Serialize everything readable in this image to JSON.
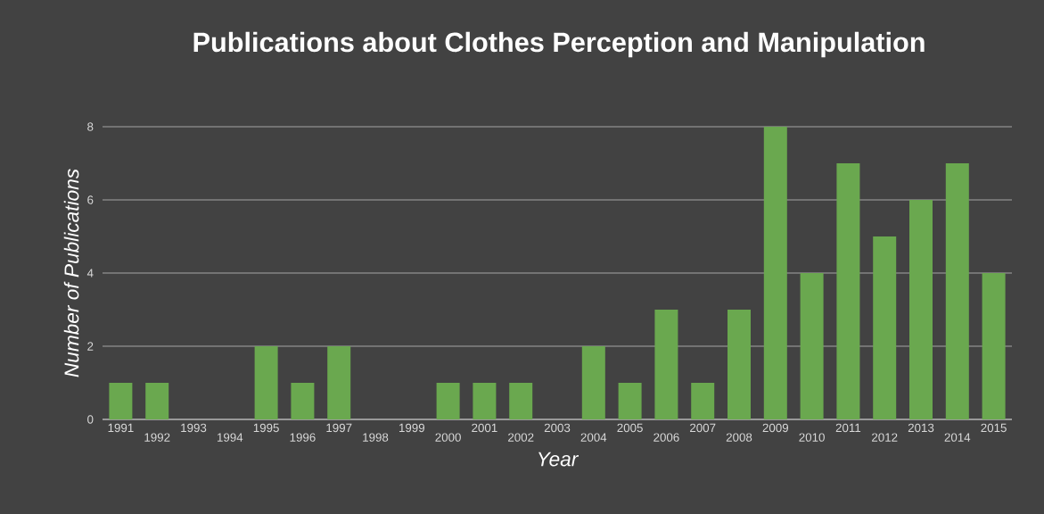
{
  "chart_data": {
    "type": "bar",
    "title": "Publications about Clothes Perception and Manipulation",
    "xlabel": "Year",
    "ylabel": "Number of Publications",
    "categories": [
      "1991",
      "1992",
      "1993",
      "1994",
      "1995",
      "1996",
      "1997",
      "1998",
      "1999",
      "2000",
      "2001",
      "2002",
      "2003",
      "2004",
      "2005",
      "2006",
      "2007",
      "2008",
      "2009",
      "2010",
      "2011",
      "2012",
      "2013",
      "2014",
      "2015"
    ],
    "values": [
      1,
      1,
      0,
      0,
      2,
      1,
      2,
      0,
      0,
      1,
      1,
      1,
      0,
      2,
      1,
      3,
      1,
      3,
      8,
      4,
      7,
      5,
      6,
      7,
      4
    ],
    "color": "#6aa84f",
    "ylim": [
      0,
      8
    ],
    "yticks": [
      0,
      2,
      4,
      6,
      8
    ],
    "grid": "y"
  }
}
